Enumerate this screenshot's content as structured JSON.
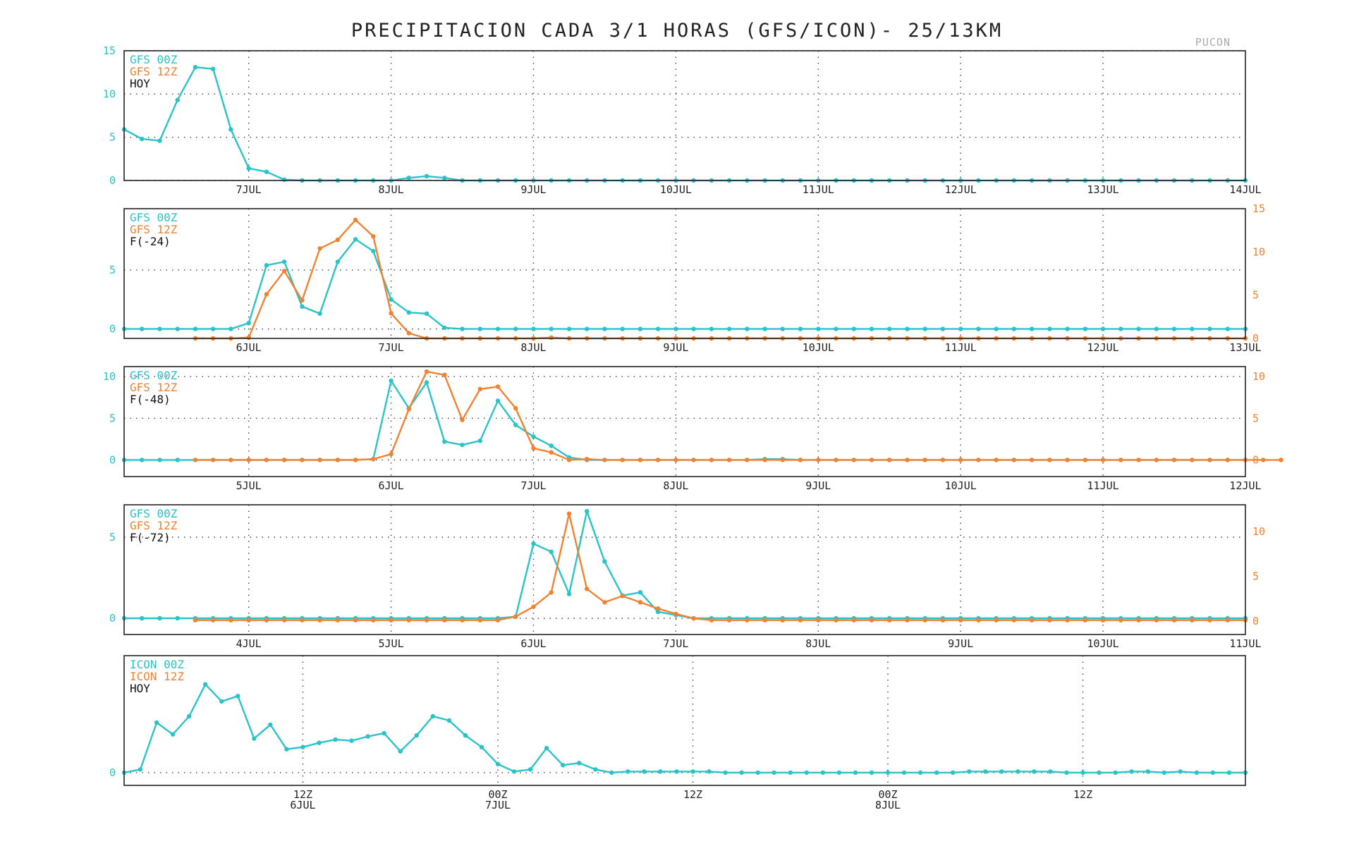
{
  "title": "PRECIPITACION CADA 3/1 HORAS (GFS/ICON)- 25/13KM",
  "location": "PUCON",
  "colors": {
    "series_00z": "#2ac3c8",
    "series_12z": "#f08232"
  },
  "chart_data": [
    {
      "type": "line",
      "legend": [
        "GFS 00Z",
        "GFS 12Z",
        "HOY"
      ],
      "x_ticks": [
        "7JUL",
        "8JUL",
        "9JUL",
        "10JUL",
        "11JUL",
        "12JUL",
        "13JUL",
        "14JUL"
      ],
      "yticks_left": [
        0,
        5,
        10,
        15
      ],
      "ylim_left": [
        0,
        15
      ],
      "grid": true,
      "series": [
        {
          "name": "GFS 00Z",
          "axis": "left",
          "start": 0,
          "values": [
            5.9,
            4.8,
            4.6,
            9.3,
            13.1,
            12.9,
            5.9,
            1.4,
            1.0,
            0.1,
            0,
            0,
            0,
            0,
            0,
            0,
            0.3,
            0.5,
            0.3,
            0,
            0,
            0,
            0,
            0,
            0,
            0,
            0,
            0,
            0,
            0,
            0,
            0,
            0,
            0,
            0,
            0,
            0,
            0,
            0,
            0,
            0,
            0,
            0,
            0,
            0,
            0,
            0,
            0,
            0,
            0,
            0,
            0,
            0,
            0,
            0,
            0,
            0,
            0,
            0,
            0,
            0,
            0,
            0,
            0
          ]
        }
      ]
    },
    {
      "type": "line",
      "legend": [
        "GFS 00Z",
        "GFS 12Z",
        "F(-24)"
      ],
      "x_ticks": [
        "6JUL",
        "7JUL",
        "8JUL",
        "9JUL",
        "10JUL",
        "11JUL",
        "12JUL",
        "13JUL"
      ],
      "yticks_left": [
        0,
        5
      ],
      "ylim_left": [
        -0.8,
        10.2
      ],
      "yticks_right": [
        0,
        5,
        10,
        15
      ],
      "ylim_right": [
        0,
        15
      ],
      "grid": true,
      "series": [
        {
          "name": "GFS 00Z",
          "axis": "left",
          "start": 0,
          "values": [
            0,
            0,
            0,
            0,
            0,
            0,
            0,
            0.5,
            5.4,
            5.7,
            1.9,
            1.3,
            5.7,
            7.6,
            6.6,
            2.5,
            1.4,
            1.3,
            0.1,
            0,
            0,
            0,
            0,
            0,
            0,
            0,
            0,
            0,
            0,
            0,
            0,
            0,
            0,
            0,
            0,
            0,
            0,
            0,
            0,
            0,
            0,
            0,
            0,
            0,
            0,
            0,
            0,
            0,
            0,
            0,
            0,
            0,
            0,
            0,
            0,
            0,
            0,
            0,
            0,
            0,
            0,
            0,
            0,
            0
          ]
        },
        {
          "name": "GFS 12Z",
          "axis": "right",
          "start": 4,
          "values": [
            0,
            0,
            0,
            0.1,
            5.1,
            7.8,
            4.4,
            10.4,
            11.4,
            13.7,
            11.8,
            2.9,
            0.6,
            0,
            0,
            0,
            0,
            0,
            0,
            0,
            0.1,
            0,
            0,
            0,
            0,
            0,
            0,
            0,
            0,
            0,
            0,
            0,
            0,
            0,
            0,
            0,
            0,
            0,
            0,
            0,
            0,
            0,
            0,
            0,
            0,
            0,
            0,
            0,
            0,
            0,
            0,
            0,
            0,
            0,
            0,
            0,
            0,
            0,
            0,
            0
          ]
        }
      ]
    },
    {
      "type": "line",
      "legend": [
        "GFS 00Z",
        "GFS 12Z",
        "F(-48)"
      ],
      "x_ticks": [
        "5JUL",
        "6JUL",
        "7JUL",
        "8JUL",
        "9JUL",
        "10JUL",
        "11JUL",
        "12JUL"
      ],
      "yticks_left": [
        0,
        5,
        10
      ],
      "ylim_left": [
        -2,
        11.2
      ],
      "yticks_right": [
        0,
        5,
        10
      ],
      "ylim_right": [
        -2,
        11.2
      ],
      "grid": true,
      "series": [
        {
          "name": "GFS 00Z",
          "axis": "left",
          "start": 0,
          "values": [
            0,
            0,
            0,
            0,
            0,
            0,
            0,
            0,
            0,
            0,
            0,
            0,
            0,
            0,
            0.1,
            9.5,
            6.2,
            9.3,
            2.2,
            1.8,
            2.3,
            7.1,
            4.2,
            2.8,
            1.7,
            0.3,
            0,
            0,
            0,
            0,
            0,
            0,
            0,
            0,
            0,
            0,
            0.1,
            0.1,
            0,
            0,
            0,
            0,
            0,
            0,
            0,
            0,
            0,
            0,
            0,
            0,
            0,
            0,
            0,
            0,
            0,
            0,
            0,
            0,
            0,
            0,
            0,
            0,
            0,
            0
          ]
        },
        {
          "name": "GFS 12Z",
          "axis": "right",
          "start": 4,
          "values": [
            0,
            0,
            0,
            0,
            0,
            0,
            0,
            0,
            0,
            0,
            0.1,
            0.7,
            6.1,
            10.6,
            10.2,
            4.8,
            8.5,
            8.8,
            6.2,
            1.4,
            0.9,
            0,
            0.1,
            0,
            0,
            0,
            0,
            0,
            0,
            0,
            0,
            0,
            0,
            0,
            0,
            0,
            0,
            0,
            0,
            0,
            0,
            0,
            0,
            0,
            0,
            0,
            0,
            0,
            0,
            0,
            0,
            0,
            0,
            0,
            0,
            0,
            0,
            0,
            0,
            0,
            0,
            0
          ]
        }
      ]
    },
    {
      "type": "line",
      "legend": [
        "GFS 00Z",
        "GFS 12Z",
        "F(-72)"
      ],
      "x_ticks": [
        "4JUL",
        "5JUL",
        "6JUL",
        "7JUL",
        "8JUL",
        "9JUL",
        "10JUL",
        "11JUL"
      ],
      "yticks_left": [
        0,
        5
      ],
      "ylim_left": [
        -1,
        7
      ],
      "yticks_right": [
        0,
        5,
        10
      ],
      "ylim_right": [
        -1.5,
        13
      ],
      "grid": true,
      "series": [
        {
          "name": "GFS 00Z",
          "axis": "left",
          "start": 0,
          "values": [
            0,
            0,
            0,
            0,
            0,
            0,
            0,
            0,
            0,
            0,
            0,
            0,
            0,
            0,
            0,
            0,
            0,
            0,
            0,
            0,
            0,
            0,
            0.1,
            4.6,
            4.1,
            1.5,
            6.6,
            3.5,
            1.4,
            1.6,
            0.4,
            0.2,
            0,
            0,
            0,
            0,
            0,
            0,
            0,
            0,
            0,
            0,
            0,
            0,
            0,
            0,
            0,
            0,
            0,
            0,
            0,
            0,
            0,
            0,
            0,
            0,
            0,
            0,
            0,
            0,
            0,
            0,
            0,
            0
          ]
        },
        {
          "name": "GFS 12Z",
          "axis": "right",
          "start": 4,
          "values": [
            0.1,
            0.1,
            0.1,
            0.1,
            0.1,
            0.1,
            0.1,
            0.1,
            0.1,
            0.1,
            0.1,
            0.1,
            0.1,
            0.1,
            0.1,
            0.1,
            0.1,
            0.1,
            0.5,
            1.6,
            3.2,
            12.0,
            3.6,
            2.1,
            2.8,
            2.1,
            1.4,
            0.8,
            0.3,
            0.1,
            0.1,
            0.1,
            0.1,
            0.1,
            0.1,
            0.1,
            0.1,
            0.1,
            0.1,
            0.1,
            0.1,
            0.1,
            0.1,
            0.1,
            0.1,
            0.1,
            0.1,
            0.1,
            0.1,
            0.1,
            0.1,
            0.1,
            0.1,
            0.1,
            0.1,
            0.1,
            0.1,
            0.1,
            0.1,
            0.1
          ]
        }
      ]
    },
    {
      "type": "line",
      "legend": [
        "ICON 00Z",
        "ICON 12Z",
        "HOY"
      ],
      "x_ticks": [
        "12Z|6JUL",
        "00Z|7JUL",
        "12Z",
        "00Z|8JUL",
        "12Z"
      ],
      "yticks_left": [
        0
      ],
      "ylim_left": [
        -1.2,
        11
      ],
      "grid": true,
      "series": [
        {
          "name": "ICON 00Z",
          "axis": "left",
          "start": 0,
          "values": [
            0,
            0.3,
            4.7,
            3.6,
            5.3,
            8.3,
            6.7,
            7.2,
            3.2,
            4.5,
            2.2,
            2.4,
            2.8,
            3.1,
            3.0,
            3.4,
            3.7,
            2.0,
            3.5,
            5.3,
            4.9,
            3.5,
            2.4,
            0.8,
            0.1,
            0.3,
            2.3,
            0.7,
            0.9,
            0.3,
            0,
            0.1,
            0.1,
            0.1,
            0.1,
            0.1,
            0.1,
            0,
            0,
            0,
            0,
            0,
            0,
            0,
            0,
            0,
            0,
            0,
            0,
            0,
            0,
            0,
            0.1,
            0.1,
            0.1,
            0.1,
            0.1,
            0.1,
            0,
            0,
            0,
            0,
            0.1,
            0.1,
            0,
            0.1,
            0,
            0,
            0,
            0
          ]
        }
      ]
    }
  ]
}
